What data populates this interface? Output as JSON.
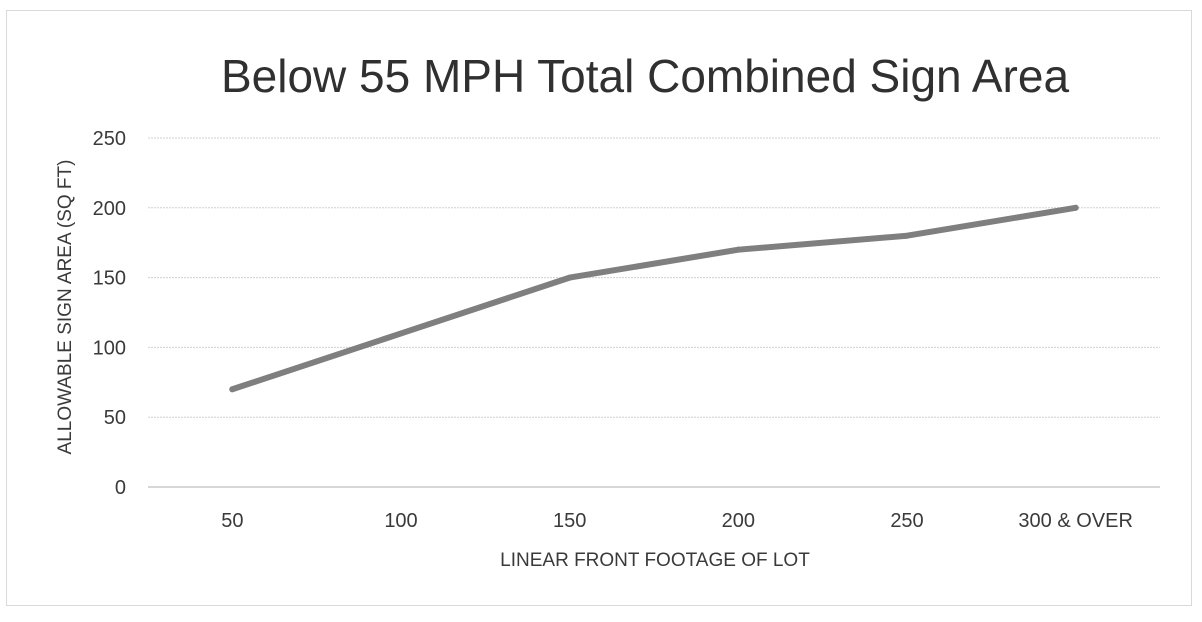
{
  "chart_data": {
    "type": "line",
    "title": "Below 55 MPH Total Combined Sign Area",
    "xlabel": "LINEAR FRONT FOOTAGE OF LOT",
    "ylabel": "ALLOWABLE SIGN AREA (SQ FT)",
    "categories": [
      "50",
      "100",
      "150",
      "200",
      "250",
      "300 & OVER"
    ],
    "series": [
      {
        "values": [
          70,
          110,
          150,
          170,
          180,
          200
        ]
      }
    ],
    "ylim": [
      0,
      250
    ],
    "yticks": [
      "0",
      "50",
      "100",
      "150",
      "200",
      "250"
    ],
    "grid": true,
    "legend": "none",
    "line_color": "#7f7f7f",
    "grid_color": "#d0d0d0"
  }
}
